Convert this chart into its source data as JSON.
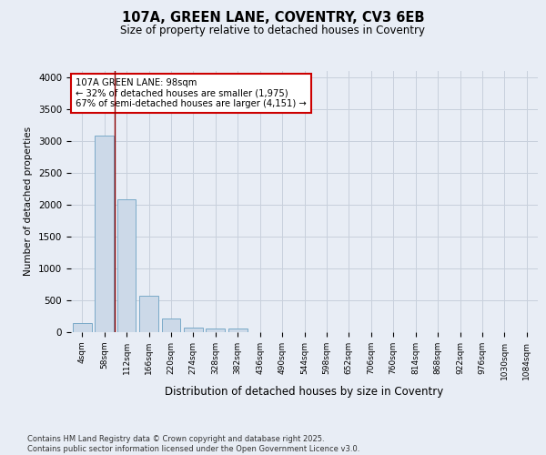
{
  "title1": "107A, GREEN LANE, COVENTRY, CV3 6EB",
  "title2": "Size of property relative to detached houses in Coventry",
  "xlabel": "Distribution of detached houses by size in Coventry",
  "ylabel": "Number of detached properties",
  "bar_labels": [
    "4sqm",
    "58sqm",
    "112sqm",
    "166sqm",
    "220sqm",
    "274sqm",
    "328sqm",
    "382sqm",
    "436sqm",
    "490sqm",
    "544sqm",
    "598sqm",
    "652sqm",
    "706sqm",
    "760sqm",
    "814sqm",
    "868sqm",
    "922sqm",
    "976sqm",
    "1030sqm",
    "1084sqm"
  ],
  "bar_values": [
    140,
    3080,
    2080,
    570,
    215,
    65,
    50,
    50,
    0,
    0,
    0,
    0,
    0,
    0,
    0,
    0,
    0,
    0,
    0,
    0,
    0
  ],
  "bar_color": "#ccd9e8",
  "bar_edge_color": "#7aaac8",
  "ylim": [
    0,
    4100
  ],
  "yticks": [
    0,
    500,
    1000,
    1500,
    2000,
    2500,
    3000,
    3500,
    4000
  ],
  "vline_x": 1.45,
  "vline_color": "#8b0000",
  "annotation_text": "107A GREEN LANE: 98sqm\n← 32% of detached houses are smaller (1,975)\n67% of semi-detached houses are larger (4,151) →",
  "annotation_box_color": "white",
  "annotation_box_edge": "#cc0000",
  "footer_text": "Contains HM Land Registry data © Crown copyright and database right 2025.\nContains public sector information licensed under the Open Government Licence v3.0.",
  "background_color": "#e8edf5",
  "plot_background": "#e8edf5",
  "grid_color": "#c8d0dc"
}
